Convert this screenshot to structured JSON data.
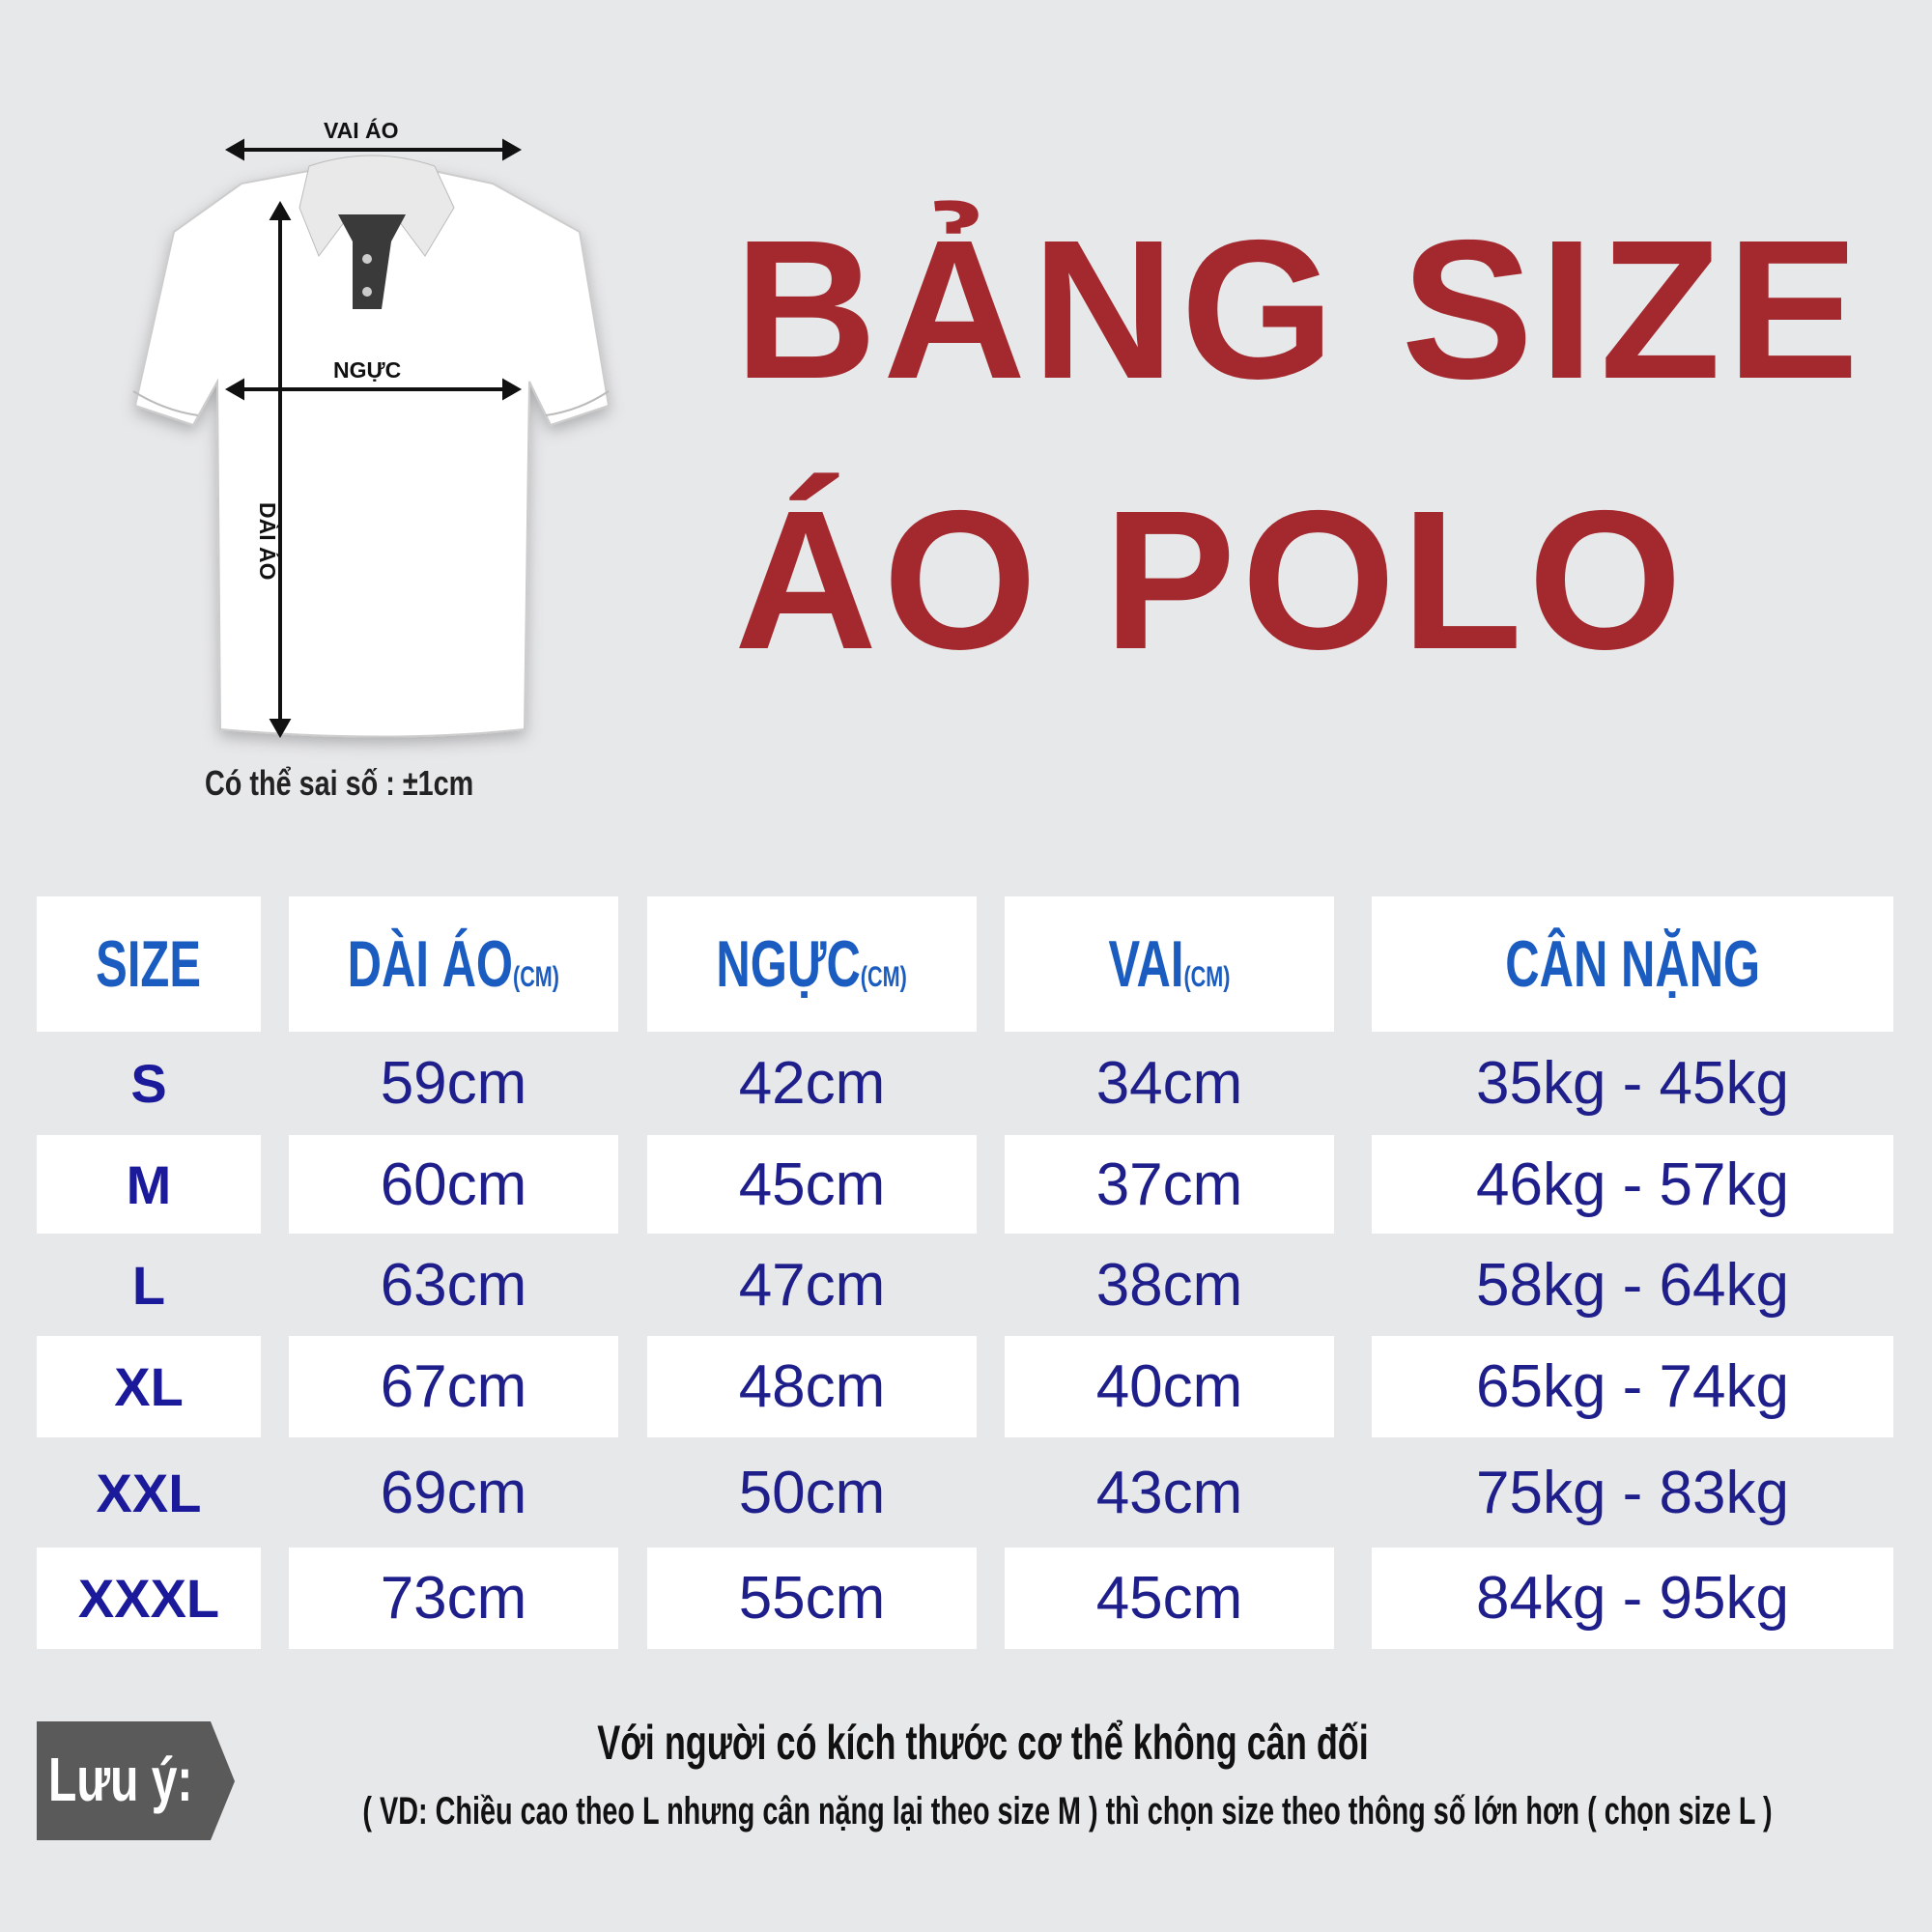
{
  "title": {
    "line1": "BẢNG SIZE",
    "line2": "ÁO POLO"
  },
  "diagram": {
    "shoulder": "VAI ÁO",
    "chest": "NGỰC",
    "length": "DÀI ÁO",
    "tolerance": "Có thể sai số : ±1cm"
  },
  "table": {
    "headers": [
      {
        "label": "SIZE",
        "unit": ""
      },
      {
        "label": "DÀI ÁO",
        "unit": "(CM)"
      },
      {
        "label": "NGỰC",
        "unit": "(CM)"
      },
      {
        "label": "VAI",
        "unit": "(CM)"
      },
      {
        "label": "CÂN NẶNG",
        "unit": ""
      }
    ],
    "rows": [
      [
        "S",
        "59cm",
        "42cm",
        "34cm",
        "35kg - 45kg"
      ],
      [
        "M",
        "60cm",
        "45cm",
        "37cm",
        "46kg - 57kg"
      ],
      [
        "L",
        "63cm",
        "47cm",
        "38cm",
        "58kg - 64kg"
      ],
      [
        "XL",
        "67cm",
        "48cm",
        "40cm",
        "65kg - 74kg"
      ],
      [
        "XXL",
        "69cm",
        "50cm",
        "43cm",
        "75kg - 83kg"
      ],
      [
        "XXXL",
        "73cm",
        "55cm",
        "45cm",
        "84kg - 95kg"
      ]
    ]
  },
  "note": {
    "label": "Lưu ý:",
    "line1": "Với người có kích thước cơ thể không cân đối",
    "line2": "( VD: Chiều cao theo L nhưng cân nặng lại theo size M ) thì chọn size theo thông số lớn hơn ( chọn size L )"
  },
  "colors": {
    "title": "#a3292e",
    "header": "#1b5cc0",
    "values": "#1f1f8c",
    "background": "#e7e8ea"
  }
}
